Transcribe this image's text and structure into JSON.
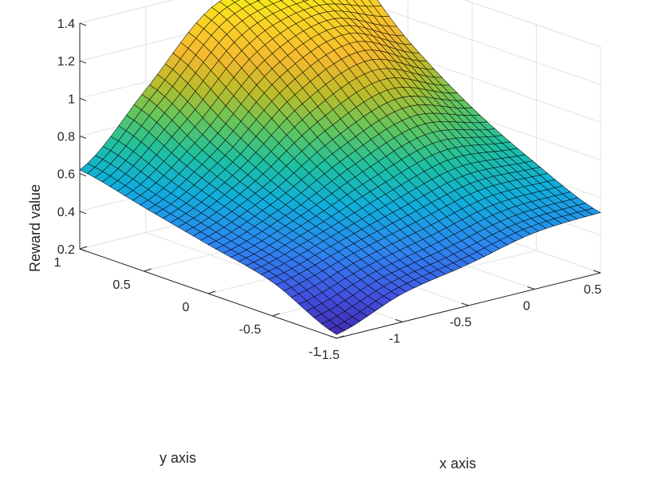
{
  "chart_data": {
    "type": "surface",
    "title": "",
    "xlabel": "x axis",
    "ylabel": "y axis",
    "zlabel": "Reward value",
    "xlim": [
      -1.5,
      0.5
    ],
    "ylim": [
      -1,
      1
    ],
    "zlim": [
      0.2,
      1.4
    ],
    "x_ticks": [
      -1.5,
      -1,
      -0.5,
      0,
      0.5
    ],
    "y_ticks": [
      -1,
      -0.5,
      0,
      0.5,
      1
    ],
    "z_ticks": [
      0.2,
      0.4,
      0.6,
      0.8,
      1,
      1.2,
      1.4
    ],
    "x_tick_labels": [
      "-1.5",
      "-1",
      "-0.5",
      "0",
      "0.5"
    ],
    "y_tick_labels": [
      "-1",
      "-0.5",
      "0",
      "0.5",
      "1"
    ],
    "z_tick_labels": [
      "0.2",
      "0.4",
      "0.6",
      "0.8",
      "1",
      "1.2",
      "1.4"
    ],
    "grid": true,
    "colormap": "parula",
    "colormap_colors": [
      "#3e26a8",
      "#4351e0",
      "#2d86f0",
      "#10aeda",
      "#1fc0a0",
      "#62c55d",
      "#ba bb2a",
      "#f5b92e",
      "#f9d425",
      "#f9fb0e"
    ],
    "edge_color": "#000000",
    "surface": {
      "x": [
        -1.5,
        -1.0,
        -0.5,
        0.0,
        0.5
      ],
      "y": [
        -1.0,
        -0.5,
        0.0,
        0.5,
        1.0
      ],
      "z": [
        [
          0.22,
          0.38,
          0.46,
          0.54,
          0.62
        ],
        [
          0.35,
          0.48,
          0.6,
          0.76,
          0.96
        ],
        [
          0.42,
          0.58,
          0.8,
          1.08,
          1.31
        ],
        [
          0.5,
          0.67,
          0.93,
          1.22,
          1.37
        ],
        [
          0.52,
          0.66,
          0.84,
          1.08,
          1.38
        ]
      ]
    }
  }
}
